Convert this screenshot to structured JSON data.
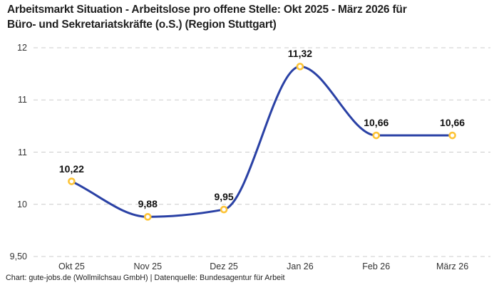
{
  "title": {
    "line1": "Arbeitsmarkt Situation - Arbeitslose pro offene Stelle: Okt 2025 - März 2026 für",
    "line2": "Büro- und Sekretariatskräfte (o.S.) (Region Stuttgart)"
  },
  "footer": {
    "text": "Chart: gute-jobs.de (Wollmilchsau GmbH) | Datenquelle: Bundesagentur für Arbeit"
  },
  "colors": {
    "line": "#2a41a5",
    "marker_ring": "#fdc437",
    "marker_fill": "#ffffff",
    "grid": "#cccccc",
    "title_text": "#1f1f1f",
    "axis_text": "#333333",
    "label_text": "#111111",
    "background": "#ffffff"
  },
  "chart_data": {
    "type": "line",
    "smooth": true,
    "title": "Arbeitsmarkt Situation - Arbeitslose pro offene Stelle: Okt 2025 - März 2026 für Büro- und Sekretariatskräfte (o.S.) (Region Stuttgart)",
    "categories": [
      "Okt 25",
      "Nov 25",
      "Dez 25",
      "Jan 26",
      "Feb 26",
      "März 26"
    ],
    "values": [
      10.22,
      9.88,
      9.95,
      11.32,
      10.66,
      10.66
    ],
    "value_labels": [
      "10,22",
      "9,88",
      "9,95",
      "11,32",
      "10,66",
      "10,66"
    ],
    "series_name": "Arbeitslose pro offene Stelle",
    "xlabel": "",
    "ylabel": "",
    "ylim": [
      9.5,
      11.5
    ],
    "y_ticks": [
      {
        "value": 11.5,
        "label": "12"
      },
      {
        "value": 11.0,
        "label": "11"
      },
      {
        "value": 10.5,
        "label": "11"
      },
      {
        "value": 10.0,
        "label": "10"
      },
      {
        "value": 9.5,
        "label": "9,50"
      }
    ],
    "grid": "horizontal-dashed",
    "legend": "none"
  }
}
